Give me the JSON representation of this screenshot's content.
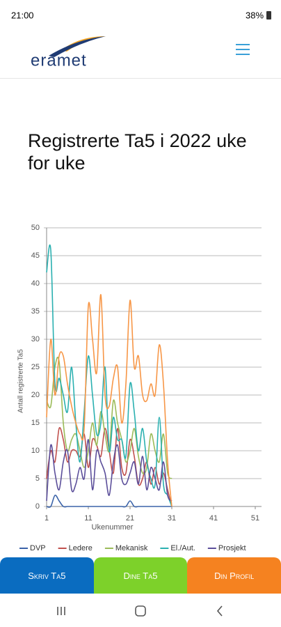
{
  "status_bar": {
    "time": "21:00",
    "battery": "38%"
  },
  "header": {
    "logo": "eramet"
  },
  "page": {
    "title": "Registrerte Ta5 i 2022 uke for uke"
  },
  "chart_data": {
    "type": "line",
    "x_label": "Ukenummer",
    "y_label": "Antall registrerte Ta5",
    "x": [
      1,
      2,
      3,
      4,
      5,
      6,
      7,
      8,
      9,
      10,
      11,
      12,
      13,
      14,
      15,
      16,
      17,
      18,
      19,
      20,
      21,
      22,
      23,
      24,
      25,
      26,
      27,
      28,
      29,
      30,
      31
    ],
    "xlim": [
      1,
      52.5
    ],
    "xticks": [
      1,
      11,
      21,
      31,
      41,
      51
    ],
    "ylim": [
      0,
      50
    ],
    "yticks": [
      0,
      5,
      10,
      15,
      20,
      25,
      30,
      35,
      40,
      45,
      50
    ],
    "grid": true,
    "series": [
      {
        "name": "DVP",
        "color": "#3a62a8",
        "values": [
          0,
          0,
          2,
          1,
          0,
          0,
          0,
          0,
          0,
          0,
          0,
          0,
          0,
          0,
          0,
          0,
          0,
          0,
          0,
          0,
          1,
          0,
          0,
          0,
          0,
          0,
          0,
          0,
          0,
          0,
          0
        ]
      },
      {
        "name": "Ledere",
        "color": "#c0504d",
        "values": [
          5,
          10,
          8,
          14,
          12,
          8,
          10,
          10,
          9,
          13,
          7,
          12,
          11,
          9,
          14,
          10,
          6,
          14,
          7,
          6,
          12,
          9,
          4,
          5,
          8,
          4,
          7,
          4,
          6,
          3,
          0
        ]
      },
      {
        "name": "Mekanisk",
        "color": "#9bbb59",
        "values": [
          19,
          18,
          25,
          26,
          15,
          10,
          12,
          13,
          10,
          7,
          10,
          15,
          11,
          17,
          13,
          10,
          19,
          15,
          12,
          8,
          10,
          14,
          9,
          6,
          7,
          13,
          10,
          8,
          13,
          6,
          5
        ]
      },
      {
        "name": "El./Aut.",
        "color": "#2ab0b0",
        "values": [
          42,
          46,
          22,
          23,
          20,
          17,
          25,
          15,
          8,
          17,
          27,
          20,
          13,
          15,
          25,
          10,
          16,
          12,
          12,
          9,
          22,
          17,
          10,
          14,
          8,
          5,
          4,
          16,
          4,
          2,
          0
        ]
      },
      {
        "name": "Prosjekt",
        "color": "#5b4e9a",
        "values": [
          1,
          11,
          6,
          3,
          8,
          10,
          3,
          4,
          7,
          5,
          12,
          3,
          10,
          8,
          6,
          2,
          8,
          11,
          5,
          4,
          6,
          8,
          4,
          9,
          3,
          7,
          5,
          3,
          8,
          2,
          1
        ]
      },
      {
        "color": "#f79646",
        "values": [
          16,
          30,
          20,
          27,
          27,
          22,
          18,
          15,
          13,
          14,
          36,
          30,
          24,
          38,
          20,
          18,
          23,
          25,
          15,
          22,
          37,
          25,
          27,
          20,
          19,
          22,
          20,
          29,
          22,
          8,
          0
        ]
      }
    ]
  },
  "buttons": [
    "Skriv Ta5",
    "Dine Ta5",
    "Din Profil"
  ]
}
